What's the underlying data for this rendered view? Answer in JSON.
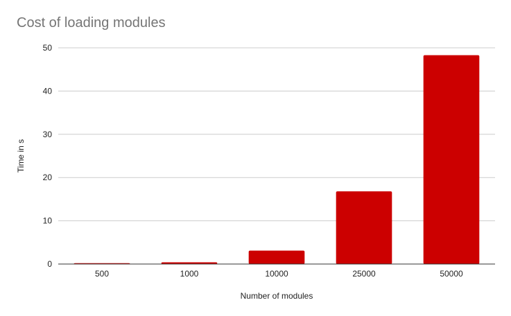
{
  "chart_data": {
    "type": "bar",
    "title": "Cost of loading modules",
    "xlabel": "Number of modules",
    "ylabel": "Time in s",
    "categories": [
      "500",
      "1000",
      "10000",
      "25000",
      "50000"
    ],
    "values": [
      0.2,
      0.4,
      3.1,
      16.8,
      48.3
    ],
    "ylim": [
      0,
      50
    ],
    "yticks": [
      "0",
      "10",
      "20",
      "30",
      "40",
      "50"
    ],
    "grid": true,
    "legend": "none",
    "bar_color": "#cc0000",
    "gridline_color": "#cccccc",
    "axis_color": "#333333",
    "title_color": "#757575"
  }
}
